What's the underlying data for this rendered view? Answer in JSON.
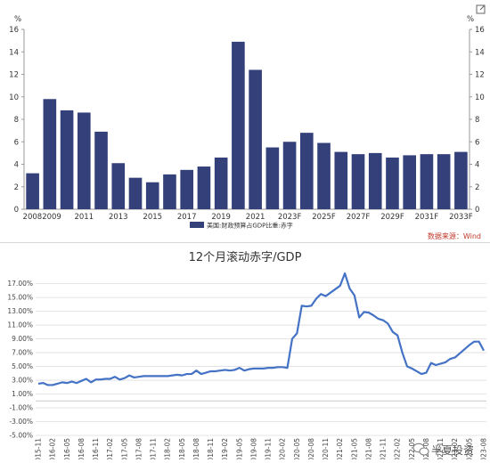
{
  "chart_data": [
    {
      "type": "bar",
      "title": "",
      "unit_left": "%",
      "unit_right": "%",
      "legend": "美国:财政预算占GDP比重:赤字",
      "source": "数据来源：Wind",
      "categories": [
        "2008",
        "2009",
        "2010",
        "2011",
        "2012",
        "2013",
        "2014",
        "2015",
        "2016",
        "2017",
        "2018",
        "2019",
        "2020",
        "2021",
        "2022",
        "2023F",
        "2024F",
        "2025F",
        "2026F",
        "2027F",
        "2028F",
        "2029F",
        "2030F",
        "2031F",
        "2032F",
        "2033F"
      ],
      "tick_labels": [
        {
          "index": 0,
          "label": "2008"
        },
        {
          "index": 1,
          "label": "2009"
        },
        {
          "index": 3,
          "label": "2011"
        },
        {
          "index": 5,
          "label": "2013"
        },
        {
          "index": 7,
          "label": "2015"
        },
        {
          "index": 9,
          "label": "2017"
        },
        {
          "index": 11,
          "label": "2019"
        },
        {
          "index": 13,
          "label": "2021"
        },
        {
          "index": 15,
          "label": "2023F"
        },
        {
          "index": 17,
          "label": "2025F"
        },
        {
          "index": 19,
          "label": "2027F"
        },
        {
          "index": 21,
          "label": "2029F"
        },
        {
          "index": 23,
          "label": "2031F"
        },
        {
          "index": 25,
          "label": "2033F"
        }
      ],
      "values": [
        3.2,
        9.8,
        8.8,
        8.6,
        6.9,
        4.1,
        2.8,
        2.4,
        3.1,
        3.5,
        3.8,
        4.6,
        14.9,
        12.4,
        5.5,
        6.0,
        6.8,
        5.9,
        5.1,
        4.9,
        5.0,
        4.6,
        4.8,
        4.9,
        4.9,
        5.1
      ],
      "ylim": [
        0,
        16
      ],
      "yticks": [
        "0",
        "2",
        "4",
        "6",
        "8",
        "10",
        "12",
        "14",
        "16"
      ],
      "color": "#344079",
      "legend_position": "bottom"
    },
    {
      "type": "line",
      "title": "12个月滚动赤字/GDP",
      "yticks": [
        "-5.00%",
        "-3.00%",
        "-1.00%",
        "1.00%",
        "3.00%",
        "5.00%",
        "7.00%",
        "9.00%",
        "11.00%",
        "13.00%",
        "15.00%",
        "17.00%"
      ],
      "ylim": [
        -5,
        18.5
      ],
      "grid": true,
      "color": "#4472C4",
      "xticks": [
        "2015-11",
        "2016-02",
        "2016-05",
        "2016-08",
        "2016-11",
        "2017-02",
        "2017-05",
        "2017-08",
        "2017-11",
        "2018-02",
        "2018-05",
        "2018-08",
        "2018-11",
        "2019-02",
        "2019-05",
        "2019-08",
        "2019-11",
        "2020-02",
        "2020-05",
        "2020-08",
        "2020-11",
        "2021-02",
        "2021-05",
        "2021-08",
        "2021-11",
        "2022-02",
        "2022-05",
        "2022-08",
        "2022-11",
        "2023-02",
        "2023-05",
        "2023-08"
      ],
      "values": [
        2.5,
        2.6,
        2.3,
        2.3,
        2.5,
        2.7,
        2.6,
        2.8,
        2.6,
        2.9,
        3.2,
        2.7,
        3.1,
        3.1,
        3.2,
        3.2,
        3.5,
        3.1,
        3.3,
        3.7,
        3.4,
        3.5,
        3.6,
        3.6,
        3.6,
        3.6,
        3.6,
        3.6,
        3.7,
        3.8,
        3.7,
        3.9,
        3.9,
        4.4,
        3.9,
        4.1,
        4.3,
        4.3,
        4.4,
        4.5,
        4.4,
        4.5,
        4.8,
        4.4,
        4.6,
        4.7,
        4.7,
        4.7,
        4.8,
        4.8,
        4.9,
        4.9,
        4.8,
        9.0,
        9.8,
        13.8,
        13.7,
        13.8,
        14.8,
        15.5,
        15.2,
        15.7,
        16.2,
        16.7,
        18.5,
        16.3,
        15.3,
        12.1,
        12.9,
        12.8,
        12.4,
        11.9,
        11.7,
        11.2,
        10.0,
        9.5,
        7.0,
        5.0,
        4.7,
        4.3,
        3.9,
        4.1,
        5.5,
        5.2,
        5.4,
        5.6,
        6.1,
        6.3,
        6.9,
        7.5,
        8.1,
        8.6,
        8.6,
        7.3
      ]
    }
  ],
  "icons": {
    "expand": "expand-icon",
    "wechat": "wechat-logo-icon"
  },
  "watermark": "半夏投资"
}
